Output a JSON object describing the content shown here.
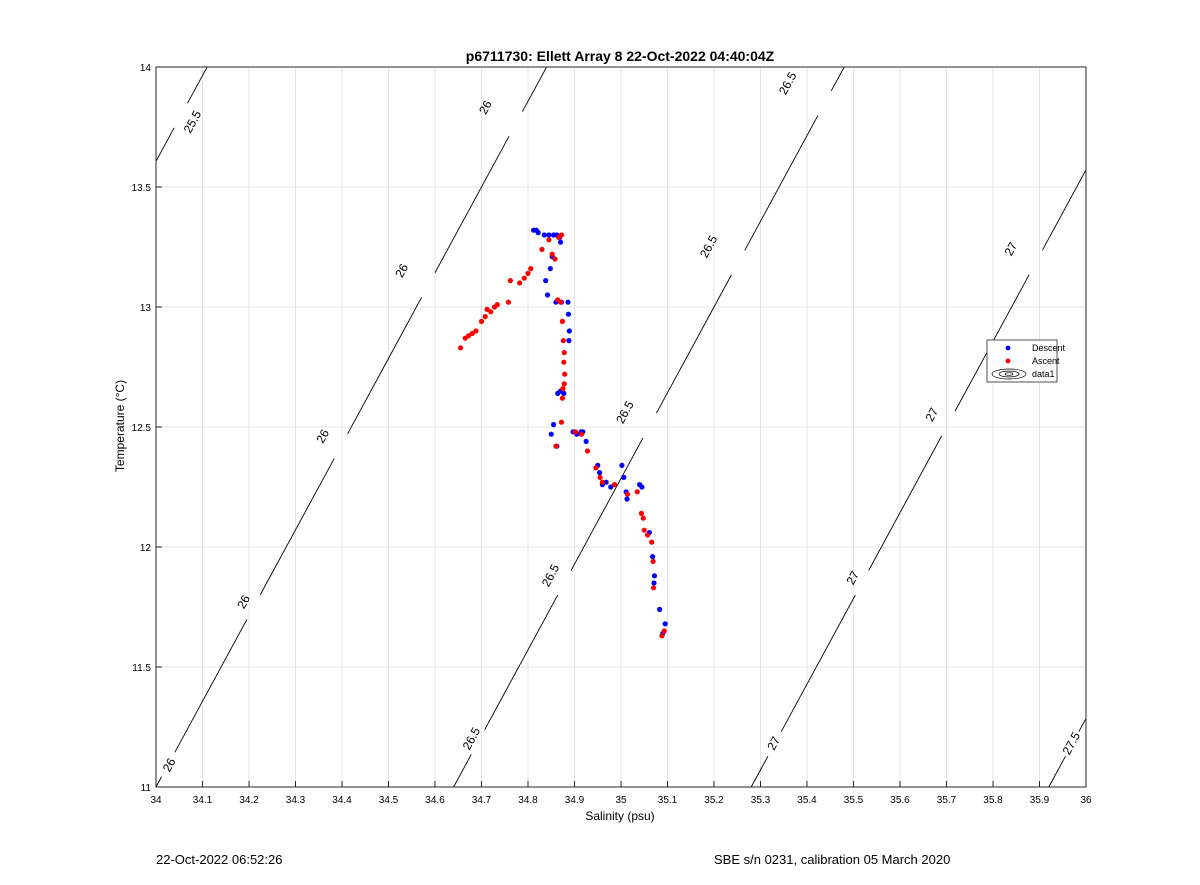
{
  "chart_data": {
    "type": "scatter",
    "title": "p6711730: Ellett Array 8 22-Oct-2022 04:40:04Z",
    "xlabel": "Salinity (psu)",
    "ylabel": "Temperature (°C)",
    "xlim": [
      34,
      36
    ],
    "ylim": [
      11,
      14
    ],
    "xticks": [
      34,
      34.1,
      34.2,
      34.3,
      34.4,
      34.5,
      34.6,
      34.7,
      34.8,
      34.9,
      35,
      35.1,
      35.2,
      35.3,
      35.4,
      35.5,
      35.6,
      35.7,
      35.8,
      35.9,
      36
    ],
    "xtick_labels": [
      "34",
      "34.1",
      "34.2",
      "34.3",
      "34.4",
      "34.5",
      "34.6",
      "34.7",
      "34.8",
      "34.9",
      "35",
      "35.1",
      "35.2",
      "35.3",
      "35.4",
      "35.5",
      "35.6",
      "35.7",
      "35.8",
      "35.9",
      "36"
    ],
    "yticks": [
      11,
      11.5,
      12,
      12.5,
      13,
      13.5,
      14
    ],
    "ytick_labels": [
      "11",
      "11.5",
      "12",
      "12.5",
      "13",
      "13.5",
      "14"
    ],
    "grid": true,
    "legend_placement": "right",
    "series": [
      {
        "name": "Descent",
        "color": "#0000ff",
        "points": [
          [
            34.812,
            13.32
          ],
          [
            34.818,
            13.32
          ],
          [
            34.822,
            13.31
          ],
          [
            34.835,
            13.3
          ],
          [
            34.845,
            13.3
          ],
          [
            34.855,
            13.3
          ],
          [
            34.862,
            13.3
          ],
          [
            34.868,
            13.29
          ],
          [
            34.87,
            13.27
          ],
          [
            34.852,
            13.21
          ],
          [
            34.848,
            13.16
          ],
          [
            34.838,
            13.11
          ],
          [
            34.842,
            13.05
          ],
          [
            34.86,
            13.02
          ],
          [
            34.872,
            13.02
          ],
          [
            34.886,
            13.02
          ],
          [
            34.887,
            12.97
          ],
          [
            34.889,
            12.9
          ],
          [
            34.888,
            12.86
          ],
          [
            34.864,
            12.64
          ],
          [
            34.87,
            12.65
          ],
          [
            34.877,
            12.64
          ],
          [
            34.85,
            12.47
          ],
          [
            34.855,
            12.51
          ],
          [
            34.862,
            12.42
          ],
          [
            34.897,
            12.48
          ],
          [
            34.905,
            12.47
          ],
          [
            34.914,
            12.48
          ],
          [
            34.918,
            12.48
          ],
          [
            34.925,
            12.44
          ],
          [
            34.95,
            12.34
          ],
          [
            34.954,
            12.31
          ],
          [
            34.96,
            12.26
          ],
          [
            34.968,
            12.27
          ],
          [
            34.978,
            12.25
          ],
          [
            35.002,
            12.34
          ],
          [
            35.006,
            12.29
          ],
          [
            35.011,
            12.23
          ],
          [
            35.013,
            12.2
          ],
          [
            35.04,
            12.26
          ],
          [
            35.045,
            12.25
          ],
          [
            35.061,
            12.06
          ],
          [
            35.068,
            11.96
          ],
          [
            35.072,
            11.88
          ],
          [
            35.071,
            11.85
          ],
          [
            35.083,
            11.74
          ],
          [
            35.09,
            11.64
          ],
          [
            35.095,
            11.68
          ]
        ]
      },
      {
        "name": "Ascent",
        "color": "#ff0000",
        "points": [
          [
            34.655,
            12.83
          ],
          [
            34.665,
            12.87
          ],
          [
            34.672,
            12.88
          ],
          [
            34.68,
            12.89
          ],
          [
            34.688,
            12.9
          ],
          [
            34.7,
            12.94
          ],
          [
            34.708,
            12.96
          ],
          [
            34.712,
            12.99
          ],
          [
            34.72,
            12.98
          ],
          [
            34.728,
            13.0
          ],
          [
            34.734,
            13.01
          ],
          [
            34.758,
            13.02
          ],
          [
            34.762,
            13.11
          ],
          [
            34.782,
            13.1
          ],
          [
            34.792,
            13.12
          ],
          [
            34.8,
            13.14
          ],
          [
            34.806,
            13.16
          ],
          [
            34.83,
            13.24
          ],
          [
            34.845,
            13.28
          ],
          [
            34.852,
            13.22
          ],
          [
            34.858,
            13.2
          ],
          [
            34.866,
            13.29
          ],
          [
            34.872,
            13.3
          ],
          [
            34.864,
            13.03
          ],
          [
            34.87,
            13.02
          ],
          [
            34.874,
            12.94
          ],
          [
            34.876,
            12.86
          ],
          [
            34.878,
            12.81
          ],
          [
            34.877,
            12.77
          ],
          [
            34.879,
            12.72
          ],
          [
            34.878,
            12.68
          ],
          [
            34.875,
            12.66
          ],
          [
            34.874,
            12.62
          ],
          [
            34.86,
            12.42
          ],
          [
            34.872,
            12.52
          ],
          [
            34.902,
            12.48
          ],
          [
            34.915,
            12.47
          ],
          [
            34.928,
            12.4
          ],
          [
            34.946,
            12.33
          ],
          [
            34.955,
            12.29
          ],
          [
            34.96,
            12.27
          ],
          [
            34.986,
            12.26
          ],
          [
            35.014,
            12.22
          ],
          [
            35.035,
            12.23
          ],
          [
            35.044,
            12.14
          ],
          [
            35.048,
            12.12
          ],
          [
            35.05,
            12.07
          ],
          [
            35.057,
            12.05
          ],
          [
            35.066,
            12.02
          ],
          [
            35.069,
            11.94
          ],
          [
            35.07,
            11.83
          ],
          [
            35.088,
            11.63
          ],
          [
            35.093,
            11.65
          ]
        ]
      }
    ],
    "contour_series_name": "data1",
    "contours": [
      {
        "level": 25.5,
        "label": "25.5",
        "x_at_ymin": 33.27,
        "x_at_ymax": 34.11,
        "label_positions": [
          [
            34.08,
            13.77
          ]
        ]
      },
      {
        "level": 26,
        "label": "26",
        "x_at_ymin": 34.0,
        "x_at_ymax": 34.84,
        "label_positions": [
          [
            34.03,
            11.09
          ],
          [
            34.19,
            11.77
          ],
          [
            34.36,
            12.46
          ],
          [
            34.53,
            13.15
          ],
          [
            34.71,
            13.83
          ]
        ]
      },
      {
        "level": 26.5,
        "label": "26.5",
        "x_at_ymin": 34.64,
        "x_at_ymax": 35.48,
        "label_positions": [
          [
            34.68,
            11.2
          ],
          [
            34.85,
            11.88
          ],
          [
            35.01,
            12.56
          ],
          [
            35.19,
            13.25
          ],
          [
            35.36,
            13.93
          ]
        ]
      },
      {
        "level": 27,
        "label": "27",
        "x_at_ymin": 35.28,
        "x_at_ymax": 36.12,
        "label_positions": [
          [
            35.33,
            11.18
          ],
          [
            35.5,
            11.87
          ],
          [
            35.67,
            12.55
          ],
          [
            35.84,
            13.24
          ]
        ]
      },
      {
        "level": 27.5,
        "label": "27.5",
        "x_at_ymin": 35.92,
        "x_at_ymax": 36.76,
        "label_positions": [
          [
            35.97,
            11.18
          ]
        ]
      }
    ]
  },
  "footer": {
    "timestamp": "22-Oct-2022 06:52:26",
    "instrument": "SBE s/n 0231, calibration 05 March 2020"
  }
}
